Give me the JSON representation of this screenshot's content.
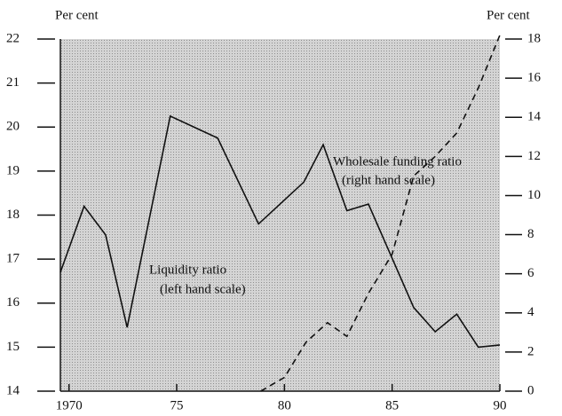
{
  "chart_data": {
    "type": "line",
    "left_axis_label": "Per cent",
    "right_axis_label": "Per cent",
    "annotations": [
      "Wholesale funding ratio",
      "(right hand scale)",
      "Liquidity ratio",
      "(left hand scale)"
    ],
    "series": [
      {
        "name": "Liquidity ratio",
        "color": "#111111",
        "dash": false,
        "x": [
          1969.6,
          1970.7,
          1971.7,
          1972.7,
          1974.7,
          1976.9,
          1978.8,
          1980.9,
          1981.8,
          1982.9,
          1983.9,
          1986.0,
          1987.0,
          1988.0,
          1989.0,
          1990.0
        ],
        "values": [
          16.7,
          18.2,
          17.55,
          15.45,
          20.25,
          19.75,
          17.8,
          18.75,
          19.6,
          18.1,
          18.25,
          15.9,
          15.35,
          15.75,
          15.0,
          15.05
        ]
      },
      {
        "name": "Wholesale funding ratio",
        "color": "#111111",
        "dash": true,
        "axis": "y2",
        "x": [
          1978.9,
          1980.0,
          1981.0,
          1982.0,
          1982.9,
          1983.9,
          1985.0,
          1986.0,
          1987.0,
          1988.0,
          1989.0,
          1990.0
        ],
        "values": [
          0,
          0.7,
          2.5,
          3.5,
          2.8,
          5.0,
          7.0,
          11.0,
          12.0,
          13.2,
          15.5,
          18.2
        ]
      }
    ],
    "xlim": [
      1969.6,
      1990.0
    ],
    "xticks": [
      1970,
      {
        "value": 1975,
        "label": "75"
      },
      {
        "value": 1980,
        "label": "80"
      },
      {
        "value": 1985,
        "label": "85"
      },
      {
        "value": 1990,
        "label": "90"
      }
    ],
    "ylim": [
      14,
      22
    ],
    "yticks": [
      14,
      15,
      16,
      17,
      18,
      19,
      20,
      21,
      22
    ],
    "y2lim": [
      0,
      18
    ],
    "y2ticks": [
      0,
      2,
      4,
      6,
      8,
      10,
      12,
      14,
      16,
      18
    ]
  }
}
